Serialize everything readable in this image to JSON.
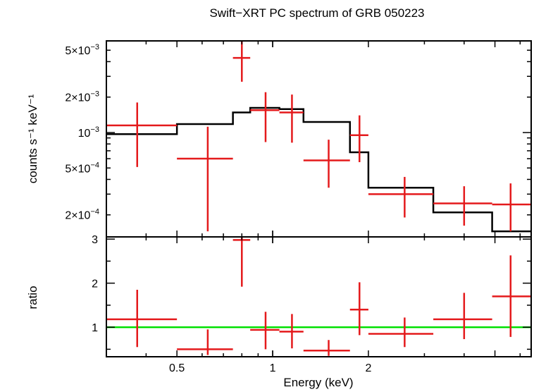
{
  "chart_data": {
    "type": "scatter",
    "title": "Swift−XRT PC spectrum of GRB 050223",
    "xlabel": "Energy (keV)",
    "x_scale": "log",
    "xlim": [
      0.3,
      6.5
    ],
    "x_ticks": [
      {
        "value": 0.5,
        "label": "0.5"
      },
      {
        "value": 1,
        "label": "1"
      },
      {
        "value": 2,
        "label": "2"
      }
    ],
    "top_panel": {
      "ylabel": "counts s⁻¹ keV⁻¹",
      "y_scale": "log",
      "ylim": [
        0.00013,
        0.006
      ],
      "y_ticks": [
        {
          "value": 0.0002,
          "mantissa": "2×10",
          "exp": "−4"
        },
        {
          "value": 0.0005,
          "mantissa": "5×10",
          "exp": "−4"
        },
        {
          "value": 0.001,
          "mantissa": "10",
          "exp": "−3"
        },
        {
          "value": 0.002,
          "mantissa": "2×10",
          "exp": "−3"
        },
        {
          "value": 0.005,
          "mantissa": "5×10",
          "exp": "−3"
        }
      ],
      "data_color": "#e41a1c",
      "model_color": "#000000",
      "data": [
        {
          "x": 0.375,
          "xlo": 0.3,
          "xhi": 0.5,
          "y": 0.00115,
          "ylo": 0.00051,
          "yhi": 0.0018
        },
        {
          "x": 0.625,
          "xlo": 0.5,
          "xhi": 0.75,
          "y": 0.0006,
          "ylo": 0.000145,
          "yhi": 0.00112
        },
        {
          "x": 0.8,
          "xlo": 0.75,
          "xhi": 0.85,
          "y": 0.0043,
          "ylo": 0.0027,
          "yhi": 0.0061
        },
        {
          "x": 0.95,
          "xlo": 0.85,
          "xhi": 1.05,
          "y": 0.00155,
          "ylo": 0.00083,
          "yhi": 0.0022
        },
        {
          "x": 1.15,
          "xlo": 1.05,
          "xhi": 1.25,
          "y": 0.00148,
          "ylo": 0.00082,
          "yhi": 0.0021
        },
        {
          "x": 1.5,
          "xlo": 1.25,
          "xhi": 1.75,
          "y": 0.00058,
          "ylo": 0.00034,
          "yhi": 0.00087
        },
        {
          "x": 1.875,
          "xlo": 1.75,
          "xhi": 2.0,
          "y": 0.00095,
          "ylo": 0.00056,
          "yhi": 0.0014
        },
        {
          "x": 2.6,
          "xlo": 2.0,
          "xhi": 3.2,
          "y": 0.0003,
          "ylo": 0.00019,
          "yhi": 0.00042
        },
        {
          "x": 4.0,
          "xlo": 3.2,
          "xhi": 4.9,
          "y": 0.00025,
          "ylo": 0.000162,
          "yhi": 0.00035
        },
        {
          "x": 5.6,
          "xlo": 4.9,
          "xhi": 6.5,
          "y": 0.000245,
          "ylo": 0.000145,
          "yhi": 0.00037
        }
      ],
      "model_steps": [
        {
          "xlo": 0.3,
          "xhi": 0.5,
          "y": 0.00097
        },
        {
          "xlo": 0.5,
          "xhi": 0.75,
          "y": 0.00118
        },
        {
          "xlo": 0.75,
          "xhi": 0.85,
          "y": 0.00148
        },
        {
          "xlo": 0.85,
          "xhi": 1.05,
          "y": 0.00162
        },
        {
          "xlo": 1.05,
          "xhi": 1.25,
          "y": 0.00158
        },
        {
          "xlo": 1.25,
          "xhi": 1.75,
          "y": 0.00123
        },
        {
          "xlo": 1.75,
          "xhi": 2.0,
          "y": 0.00068
        },
        {
          "xlo": 2.0,
          "xhi": 3.2,
          "y": 0.00034
        },
        {
          "xlo": 3.2,
          "xhi": 4.9,
          "y": 0.00021
        },
        {
          "xlo": 4.9,
          "xhi": 6.5,
          "y": 0.000145
        }
      ]
    },
    "bottom_panel": {
      "ylabel": "ratio",
      "y_scale": "linear",
      "ylim": [
        0.33,
        3.05
      ],
      "y_ticks": [
        {
          "value": 1,
          "label": "1"
        },
        {
          "value": 2,
          "label": "2"
        },
        {
          "value": 3,
          "label": "3"
        }
      ],
      "reference_line": {
        "y": 1,
        "color": "#00e000"
      },
      "data_color": "#e41a1c",
      "data": [
        {
          "x": 0.375,
          "xlo": 0.3,
          "xhi": 0.5,
          "y": 1.18,
          "ylo": 0.55,
          "yhi": 1.85
        },
        {
          "x": 0.625,
          "xlo": 0.5,
          "xhi": 0.75,
          "y": 0.5,
          "ylo": 0.37,
          "yhi": 0.95
        },
        {
          "x": 0.8,
          "xlo": 0.75,
          "xhi": 0.85,
          "y": 2.98,
          "ylo": 1.92,
          "yhi": 3.05
        },
        {
          "x": 0.95,
          "xlo": 0.85,
          "xhi": 1.05,
          "y": 0.94,
          "ylo": 0.5,
          "yhi": 1.35
        },
        {
          "x": 1.15,
          "xlo": 1.05,
          "xhi": 1.25,
          "y": 0.9,
          "ylo": 0.52,
          "yhi": 1.3
        },
        {
          "x": 1.5,
          "xlo": 1.25,
          "xhi": 1.75,
          "y": 0.47,
          "ylo": 0.35,
          "yhi": 0.71
        },
        {
          "x": 1.875,
          "xlo": 1.75,
          "xhi": 2.0,
          "y": 1.4,
          "ylo": 0.82,
          "yhi": 2.02
        },
        {
          "x": 2.6,
          "xlo": 2.0,
          "xhi": 3.2,
          "y": 0.85,
          "ylo": 0.55,
          "yhi": 1.22
        },
        {
          "x": 4.0,
          "xlo": 3.2,
          "xhi": 4.9,
          "y": 1.18,
          "ylo": 0.73,
          "yhi": 1.78
        },
        {
          "x": 5.6,
          "xlo": 4.9,
          "xhi": 6.5,
          "y": 1.7,
          "ylo": 0.78,
          "yhi": 2.63
        }
      ]
    }
  }
}
